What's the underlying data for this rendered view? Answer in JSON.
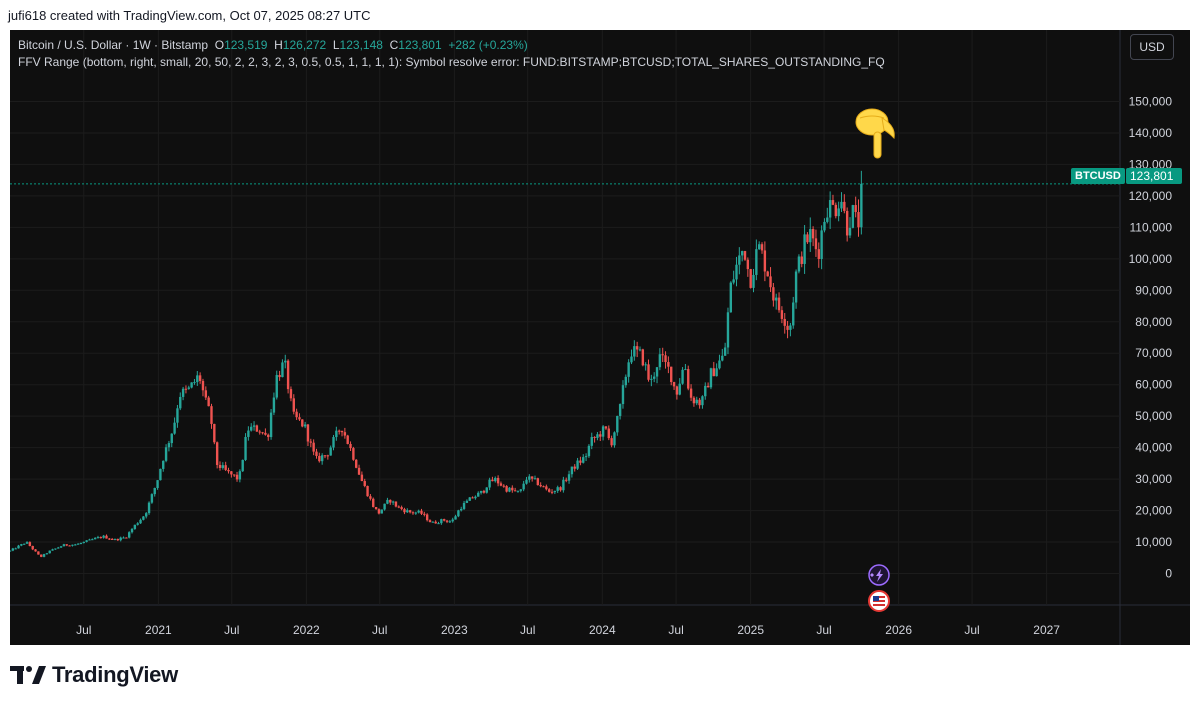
{
  "header": {
    "credit": "jufi618 created with TradingView.com, Oct 07, 2025 08:27 UTC"
  },
  "legend": {
    "symbol": "Bitcoin / U.S. Dollar · 1W · Bitstamp",
    "o_label": "O",
    "o_value": "123,519",
    "h_label": "H",
    "h_value": "126,272",
    "l_label": "L",
    "l_value": "123,148",
    "c_label": "C",
    "c_value": "123,801",
    "change": "+282 (+0.23%)",
    "indicator": "FFV Range (bottom, right, small, 20, 50, 2, 2, 3, 2, 3, 0.5, 0.5, 1, 1, 1, 1): Symbol resolve error: FUND:BITSTAMP;BTCUSD;TOTAL_SHARES_OUTSTANDING_FQ"
  },
  "toolbar": {
    "currency_button": "USD"
  },
  "price_line": {
    "symbol_tag": "BTCUSD",
    "price_tag": "123,801",
    "color": "#089981"
  },
  "colors": {
    "up": "#26a69a",
    "down": "#ef5350",
    "background": "#0f0f0f",
    "grid": "#1c1c1c",
    "axis_text": "#d1d4dc"
  },
  "icons": [
    "pointing-down-emoji-icon",
    "lightning-event-icon",
    "us-flag-event-icon"
  ],
  "brand": {
    "name": "TradingView"
  },
  "chart_data": {
    "type": "candlestick",
    "interval": "1W",
    "xlim": [
      "2020-01-01",
      "2027-07-01"
    ],
    "ylim": [
      -10000,
      160000
    ],
    "y_ticks": [
      {
        "value": 0,
        "label": "0"
      },
      {
        "value": 10000,
        "label": "10,000"
      },
      {
        "value": 20000,
        "label": "20,000"
      },
      {
        "value": 30000,
        "label": "30,000"
      },
      {
        "value": 40000,
        "label": "40,000"
      },
      {
        "value": 50000,
        "label": "50,000"
      },
      {
        "value": 60000,
        "label": "60,000"
      },
      {
        "value": 70000,
        "label": "70,000"
      },
      {
        "value": 80000,
        "label": "80,000"
      },
      {
        "value": 90000,
        "label": "90,000"
      },
      {
        "value": 100000,
        "label": "100,000"
      },
      {
        "value": 110000,
        "label": "110,000"
      },
      {
        "value": 120000,
        "label": "120,000"
      },
      {
        "value": 130000,
        "label": "130,000"
      },
      {
        "value": 140000,
        "label": "140,000"
      },
      {
        "value": 150000,
        "label": "150,000"
      }
    ],
    "x_ticks": [
      {
        "date": "2020-07-01",
        "label": "Jul"
      },
      {
        "date": "2021-01-01",
        "label": "2021"
      },
      {
        "date": "2021-07-01",
        "label": "Jul"
      },
      {
        "date": "2022-01-01",
        "label": "2022"
      },
      {
        "date": "2022-07-01",
        "label": "Jul"
      },
      {
        "date": "2023-01-01",
        "label": "2023"
      },
      {
        "date": "2023-07-01",
        "label": "Jul"
      },
      {
        "date": "2024-01-01",
        "label": "2024"
      },
      {
        "date": "2024-07-01",
        "label": "Jul"
      },
      {
        "date": "2025-01-01",
        "label": "2025"
      },
      {
        "date": "2025-07-01",
        "label": "Jul"
      },
      {
        "date": "2026-01-01",
        "label": "2026"
      },
      {
        "date": "2026-07-01",
        "label": "Jul"
      },
      {
        "date": "2027-01-01",
        "label": "2027"
      }
    ],
    "last_price": 123801,
    "close_series": [
      [
        "2020-01-01",
        7200
      ],
      [
        "2020-02-10",
        10000
      ],
      [
        "2020-03-16",
        5200
      ],
      [
        "2020-04-06",
        7000
      ],
      [
        "2020-05-11",
        9000
      ],
      [
        "2020-06-15",
        9300
      ],
      [
        "2020-07-27",
        11000
      ],
      [
        "2020-08-17",
        11800
      ],
      [
        "2020-09-14",
        10700
      ],
      [
        "2020-10-12",
        11500
      ],
      [
        "2020-11-02",
        15000
      ],
      [
        "2020-11-30",
        19000
      ],
      [
        "2020-12-28",
        29000
      ],
      [
        "2021-01-11",
        36000
      ],
      [
        "2021-02-08",
        47000
      ],
      [
        "2021-02-22",
        57000
      ],
      [
        "2021-03-15",
        58000
      ],
      [
        "2021-04-12",
        63000
      ],
      [
        "2021-04-26",
        55000
      ],
      [
        "2021-05-10",
        50000
      ],
      [
        "2021-05-24",
        35000
      ],
      [
        "2021-06-21",
        32000
      ],
      [
        "2021-07-19",
        30000
      ],
      [
        "2021-08-09",
        46000
      ],
      [
        "2021-09-06",
        46000
      ],
      [
        "2021-09-27",
        43000
      ],
      [
        "2021-10-18",
        62000
      ],
      [
        "2021-11-08",
        67000
      ],
      [
        "2021-11-29",
        50000
      ],
      [
        "2021-12-27",
        47000
      ],
      [
        "2022-01-24",
        36000
      ],
      [
        "2022-02-21",
        38000
      ],
      [
        "2022-03-28",
        47000
      ],
      [
        "2022-04-25",
        38000
      ],
      [
        "2022-05-16",
        30000
      ],
      [
        "2022-06-13",
        22000
      ],
      [
        "2022-06-27",
        19000
      ],
      [
        "2022-07-25",
        23500
      ],
      [
        "2022-08-15",
        21000
      ],
      [
        "2022-09-12",
        19500
      ],
      [
        "2022-10-10",
        19300
      ],
      [
        "2022-11-07",
        16000
      ],
      [
        "2022-12-05",
        17000
      ],
      [
        "2022-12-26",
        16500
      ],
      [
        "2023-01-16",
        21000
      ],
      [
        "2023-02-13",
        24000
      ],
      [
        "2023-03-13",
        26000
      ],
      [
        "2023-03-20",
        28000
      ],
      [
        "2023-04-10",
        30000
      ],
      [
        "2023-05-08",
        27000
      ],
      [
        "2023-06-12",
        25500
      ],
      [
        "2023-06-26",
        30500
      ],
      [
        "2023-07-24",
        29000
      ],
      [
        "2023-08-21",
        26000
      ],
      [
        "2023-09-18",
        27000
      ],
      [
        "2023-10-23",
        34000
      ],
      [
        "2023-11-20",
        37000
      ],
      [
        "2023-12-04",
        42000
      ],
      [
        "2024-01-08",
        46000
      ],
      [
        "2024-01-22",
        41000
      ],
      [
        "2024-02-12",
        51000
      ],
      [
        "2024-02-26",
        62000
      ],
      [
        "2024-03-11",
        71000
      ],
      [
        "2024-04-08",
        69000
      ],
      [
        "2024-04-29",
        60000
      ],
      [
        "2024-05-20",
        69000
      ],
      [
        "2024-06-17",
        64000
      ],
      [
        "2024-07-01",
        57000
      ],
      [
        "2024-07-22",
        67000
      ],
      [
        "2024-08-05",
        56000
      ],
      [
        "2024-09-02",
        54000
      ],
      [
        "2024-09-23",
        63000
      ],
      [
        "2024-10-14",
        67000
      ],
      [
        "2024-10-28",
        69000
      ],
      [
        "2024-11-11",
        90000
      ],
      [
        "2024-11-25",
        97000
      ],
      [
        "2024-12-16",
        104000
      ],
      [
        "2024-12-30",
        93000
      ],
      [
        "2025-01-20",
        104000
      ],
      [
        "2025-02-10",
        97000
      ],
      [
        "2025-03-03",
        86000
      ],
      [
        "2025-03-24",
        82000
      ],
      [
        "2025-04-07",
        77000
      ],
      [
        "2025-04-21",
        94000
      ],
      [
        "2025-05-12",
        104000
      ],
      [
        "2025-05-26",
        108000
      ],
      [
        "2025-06-16",
        102000
      ],
      [
        "2025-07-07",
        117000
      ],
      [
        "2025-07-28",
        116000
      ],
      [
        "2025-08-11",
        121000
      ],
      [
        "2025-08-25",
        110000
      ],
      [
        "2025-09-08",
        115000
      ],
      [
        "2025-09-22",
        110000
      ],
      [
        "2025-10-06",
        123801
      ]
    ]
  }
}
